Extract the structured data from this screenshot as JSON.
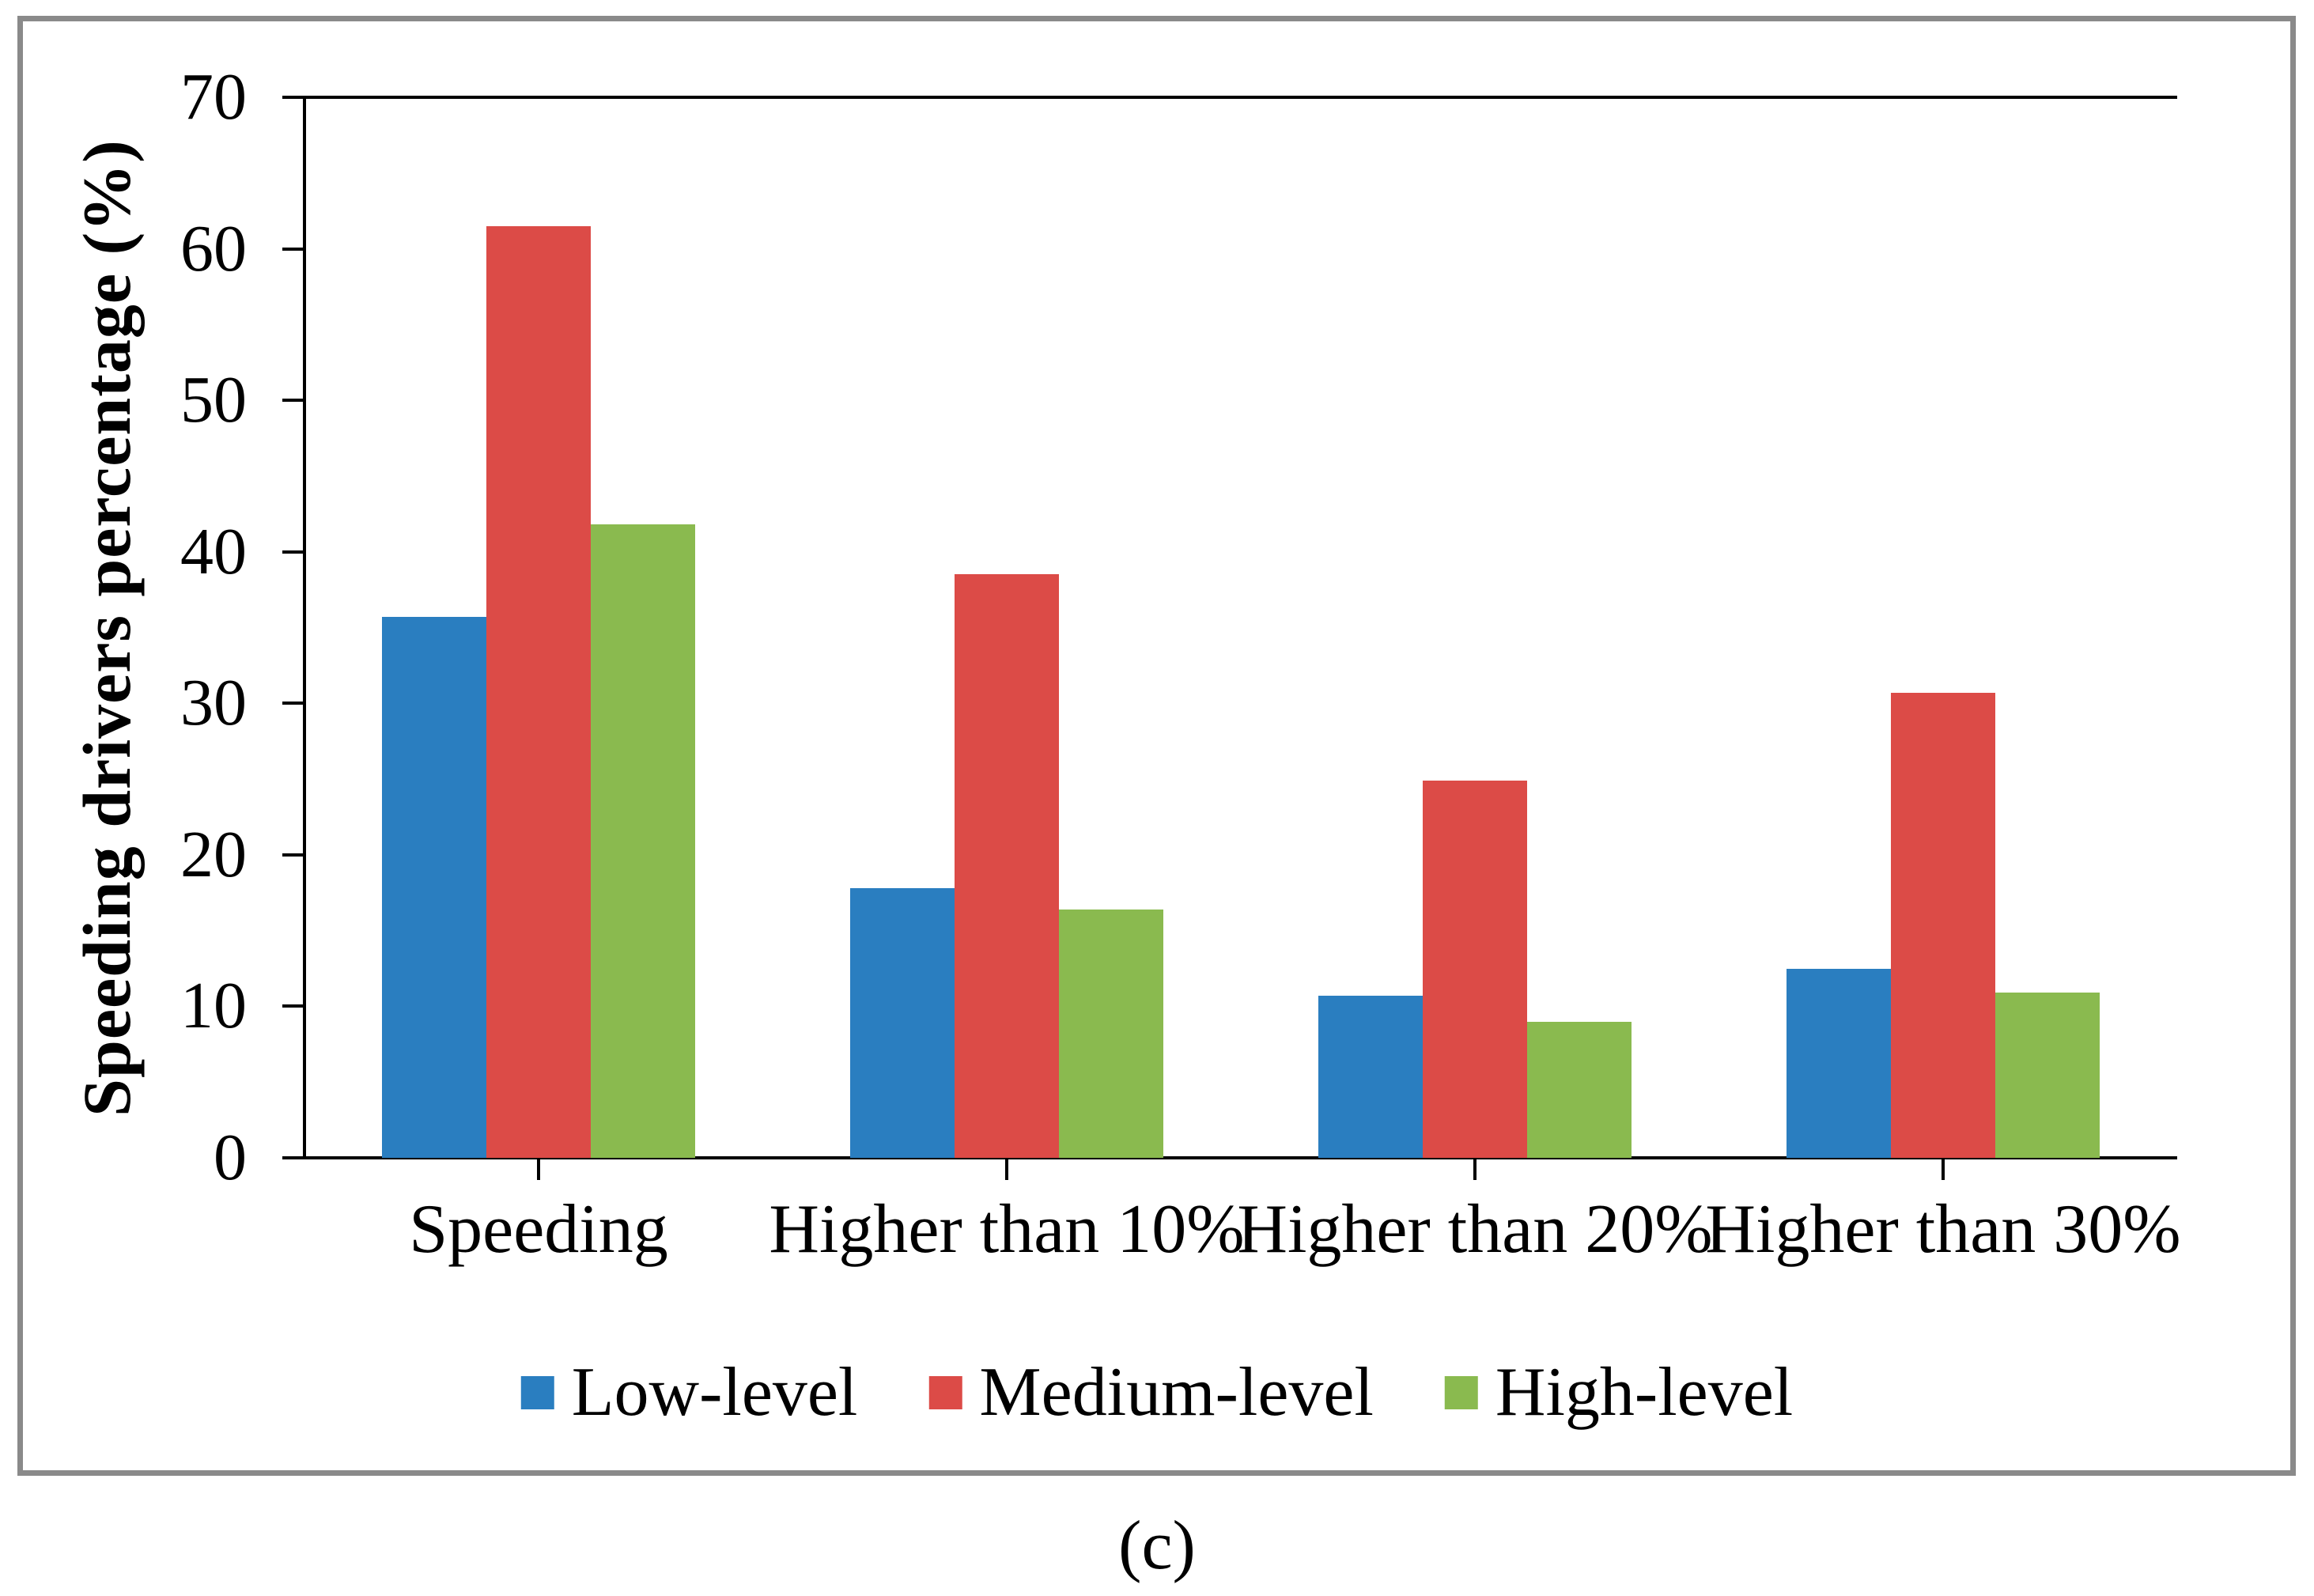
{
  "figure": {
    "caption": "(c)"
  },
  "chart_data": {
    "type": "bar",
    "title": "",
    "xlabel": "",
    "ylabel": "Speeding drivers percentage (%)",
    "ylim": [
      0,
      70
    ],
    "yticks": [
      0,
      10,
      20,
      30,
      40,
      50,
      60,
      70
    ],
    "grid": false,
    "legend_position": "bottom",
    "categories": [
      "Speeding",
      "Higher than 10%",
      "Higher than 20%",
      "Higher than 30%"
    ],
    "series": [
      {
        "name": "Low-level",
        "color": "#2a7ec0",
        "values": [
          35.7,
          17.8,
          10.7,
          12.5
        ]
      },
      {
        "name": "Medium-level",
        "color": "#dc4b47",
        "values": [
          61.5,
          38.5,
          24.9,
          30.7
        ]
      },
      {
        "name": "High-level",
        "color": "#8aba4f",
        "values": [
          41.8,
          16.4,
          9.0,
          10.9
        ]
      }
    ]
  },
  "colors": {
    "axis": "#000000",
    "panel_border": "#8a8a8a",
    "background": "#ffffff"
  }
}
